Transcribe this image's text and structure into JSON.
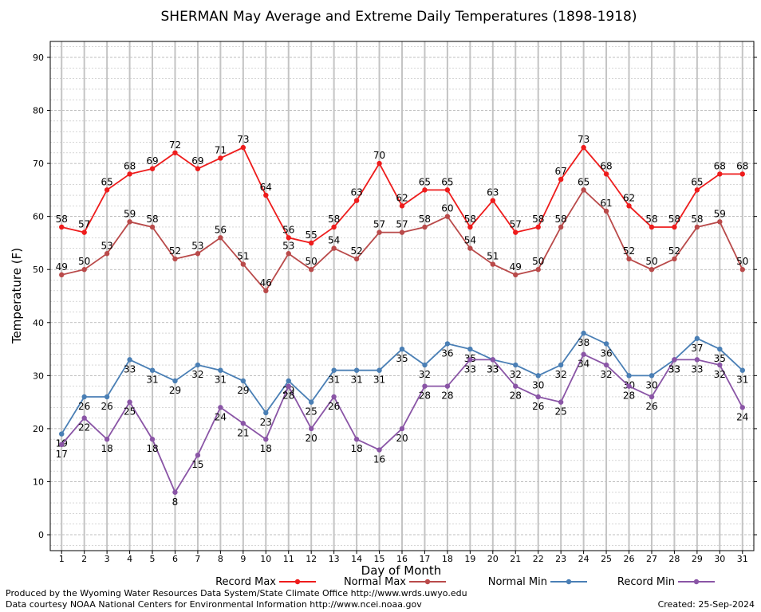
{
  "chart_data": {
    "type": "line",
    "title": "SHERMAN May Average and Extreme Daily Temperatures (1898-1918)",
    "xlabel": "Day of Month",
    "ylabel": "Temperature (F)",
    "xlim": [
      0.5,
      31.5
    ],
    "ylim": [
      -3,
      93
    ],
    "yticks": [
      0,
      10,
      20,
      30,
      40,
      50,
      60,
      70,
      80,
      90
    ],
    "grid": true,
    "legend": "bottom",
    "x": [
      1,
      2,
      3,
      4,
      5,
      6,
      7,
      8,
      9,
      10,
      11,
      12,
      13,
      14,
      15,
      16,
      17,
      18,
      19,
      20,
      21,
      22,
      23,
      24,
      25,
      26,
      27,
      28,
      29,
      30,
      31
    ],
    "series": [
      {
        "name": "Record Max",
        "color": "#ee1c1c",
        "label_position": "above",
        "values": [
          58,
          57,
          65,
          68,
          69,
          72,
          69,
          71,
          73,
          64,
          56,
          55,
          58,
          63,
          70,
          62,
          65,
          65,
          58,
          63,
          57,
          58,
          67,
          73,
          68,
          62,
          58,
          58,
          65,
          68,
          68
        ]
      },
      {
        "name": "Normal Max",
        "color": "#b94a4a",
        "label_position": "above",
        "values": [
          49,
          50,
          53,
          59,
          58,
          52,
          53,
          56,
          51,
          46,
          53,
          50,
          54,
          52,
          57,
          57,
          58,
          60,
          54,
          51,
          49,
          50,
          58,
          65,
          61,
          52,
          50,
          52,
          58,
          59,
          50
        ]
      },
      {
        "name": "Normal Min",
        "color": "#4a7fb5",
        "label_position": "below",
        "values": [
          19,
          26,
          26,
          33,
          31,
          29,
          32,
          31,
          29,
          23,
          29,
          25,
          31,
          31,
          31,
          35,
          32,
          36,
          35,
          33,
          32,
          30,
          32,
          38,
          36,
          30,
          30,
          33,
          37,
          35,
          31
        ]
      },
      {
        "name": "Record Min",
        "color": "#8a55a6",
        "label_position": "below",
        "values": [
          17,
          22,
          18,
          25,
          18,
          8,
          15,
          24,
          21,
          18,
          28,
          20,
          26,
          18,
          16,
          20,
          28,
          28,
          33,
          33,
          28,
          26,
          25,
          34,
          32,
          28,
          26,
          33,
          33,
          32,
          24
        ]
      }
    ]
  },
  "footer": {
    "produced_by": "Produced by the Wyoming Water Resources Data System/State Climate Office http://www.wrds.uwyo.edu",
    "courtesy": "Data courtesy NOAA National Centers for Environmental Information http://www.ncei.noaa.gov",
    "created": "Created:  25-Sep-2024"
  }
}
